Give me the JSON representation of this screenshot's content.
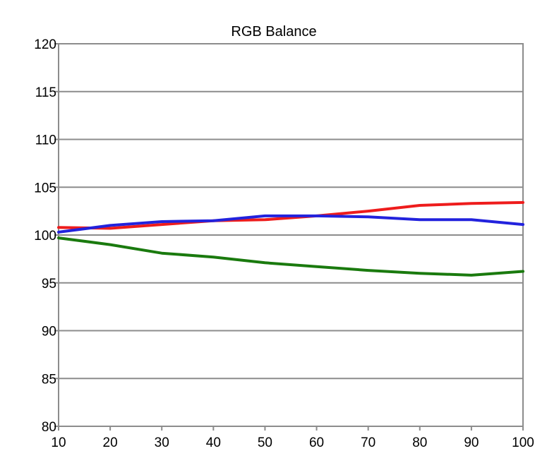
{
  "chart_data": {
    "type": "line",
    "title": "RGB Balance",
    "xlabel": "",
    "ylabel": "",
    "x": [
      10,
      20,
      30,
      40,
      50,
      60,
      70,
      80,
      90,
      100
    ],
    "xlim": [
      10,
      100
    ],
    "ylim": [
      80,
      120
    ],
    "x_ticks": [
      "10",
      "20",
      "30",
      "40",
      "50",
      "60",
      "70",
      "80",
      "90",
      "100"
    ],
    "y_ticks": [
      "80",
      "85",
      "90",
      "95",
      "100",
      "105",
      "110",
      "115",
      "120"
    ],
    "grid": "horizontal",
    "legend": "none",
    "series": [
      {
        "color": "#ee1c1c",
        "values": [
          100.8,
          100.7,
          101.1,
          101.5,
          101.6,
          102.0,
          102.5,
          103.1,
          103.3,
          103.4
        ]
      },
      {
        "color": "#1a7a0e",
        "values": [
          99.7,
          99.0,
          98.1,
          97.7,
          97.1,
          96.7,
          96.3,
          96.0,
          95.8,
          96.2
        ]
      },
      {
        "color": "#2222dd",
        "values": [
          100.3,
          101.0,
          101.4,
          101.5,
          102.0,
          102.0,
          101.9,
          101.6,
          101.6,
          101.1
        ]
      }
    ]
  }
}
